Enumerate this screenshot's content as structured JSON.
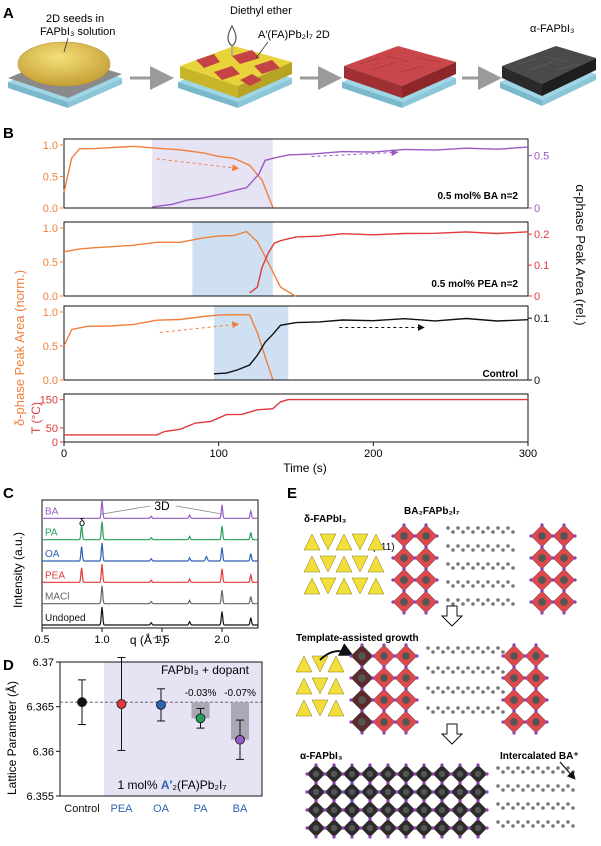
{
  "colors": {
    "orange": "#f07f3c",
    "purple": "#9b59c6",
    "red": "#e03a3a",
    "black": "#111111",
    "green": "#27a05b",
    "blue": "#2e62b5",
    "gray": "#666666",
    "shade_blue": "#cfe0f2",
    "shade_lav": "#e6e4f4",
    "crystal_yellow": "#f2df3a",
    "crystal_red": "#e0494b",
    "crystal_black": "#2b2b2b",
    "atom_purple": "#8a3fb4"
  },
  "panelA": {
    "letter": "A",
    "seeds_label": [
      "2D seeds in",
      "FAPbI₃ solution"
    ],
    "ether_label": "Diethyl ether",
    "twoD_label": "A′(FA)Pb₂I₇ 2D",
    "alpha_label": "α-FAPbI₃"
  },
  "panelB": {
    "letter": "B",
    "left_axis_label": "δ-phase Peak Area (norm.)",
    "right_axis_label": "α-phase Peak Area (rel.)",
    "temp_label": "T (°C)",
    "xlabel": "Time (s)",
    "sub1_label": "0.5 mol% BA n=2",
    "sub2_label": "0.5 mol% PEA n=2",
    "sub3_label": "Control"
  },
  "chart_data": [
    {
      "id": "B1",
      "type": "line",
      "xlim": [
        0,
        300
      ],
      "left_ylim": [
        0,
        1.0
      ],
      "right_ylim": [
        0,
        0.6
      ],
      "left_ticks": [
        "0.0",
        "0.5",
        "1.0"
      ],
      "right_ticks": [
        "0",
        "0.5"
      ],
      "shaded_x": [
        57,
        135
      ],
      "series": [
        {
          "axis": "left",
          "color": "orange",
          "x": [
            0,
            5,
            10,
            20,
            30,
            45,
            60,
            75,
            90,
            100,
            110,
            120,
            128,
            135
          ],
          "y": [
            0.25,
            0.8,
            0.93,
            0.95,
            0.96,
            0.97,
            0.96,
            0.92,
            0.87,
            0.83,
            0.78,
            0.68,
            0.45,
            0.0
          ]
        },
        {
          "axis": "right",
          "color": "purple",
          "x": [
            57,
            70,
            80,
            90,
            100,
            110,
            118,
            126,
            130,
            135,
            145,
            160,
            180,
            200,
            220,
            240,
            260,
            280,
            300
          ],
          "y": [
            0.01,
            0.04,
            0.07,
            0.1,
            0.13,
            0.16,
            0.2,
            0.32,
            0.45,
            0.48,
            0.5,
            0.52,
            0.53,
            0.54,
            0.55,
            0.56,
            0.56,
            0.57,
            0.57
          ]
        }
      ]
    },
    {
      "id": "B2",
      "type": "line",
      "xlim": [
        0,
        300
      ],
      "left_ylim": [
        0,
        1.0
      ],
      "right_ylim": [
        0,
        0.22
      ],
      "left_ticks": [
        "0.0",
        "0.5",
        "1.0"
      ],
      "right_ticks": [
        "0",
        "0.1",
        "0.2"
      ],
      "shaded_x": [
        83,
        135
      ],
      "series": [
        {
          "axis": "left",
          "color": "orange",
          "x": [
            0,
            10,
            20,
            30,
            45,
            60,
            75,
            90,
            100,
            110,
            118,
            125,
            132,
            140,
            150
          ],
          "y": [
            0.65,
            0.7,
            0.7,
            0.73,
            0.75,
            0.78,
            0.8,
            0.85,
            0.88,
            0.9,
            0.94,
            0.8,
            0.5,
            0.12,
            0.0
          ]
        },
        {
          "axis": "right",
          "color": "red",
          "x": [
            120,
            125,
            128,
            132,
            136,
            140,
            150,
            165,
            180,
            200,
            220,
            240,
            260,
            280,
            300
          ],
          "y": [
            0.01,
            0.03,
            0.09,
            0.14,
            0.17,
            0.18,
            0.19,
            0.195,
            0.2,
            0.2,
            0.2,
            0.205,
            0.205,
            0.205,
            0.205
          ]
        }
      ]
    },
    {
      "id": "B3",
      "type": "line",
      "xlim": [
        0,
        300
      ],
      "left_ylim": [
        0,
        1.0
      ],
      "right_ylim": [
        0,
        0.11
      ],
      "left_ticks": [
        "0.0",
        "0.5",
        "1.0"
      ],
      "right_ticks": [
        "0",
        "0.1"
      ],
      "shaded_x": [
        97,
        145
      ],
      "series": [
        {
          "axis": "left",
          "color": "orange",
          "x": [
            0,
            5,
            15,
            30,
            45,
            60,
            75,
            90,
            100,
            110,
            120,
            125,
            130,
            135
          ],
          "y": [
            0.5,
            0.75,
            0.78,
            0.8,
            0.82,
            0.87,
            0.9,
            0.93,
            0.95,
            0.97,
            0.95,
            0.7,
            0.35,
            0.0
          ]
        },
        {
          "axis": "right",
          "color": "black",
          "x": [
            97,
            105,
            112,
            120,
            125,
            130,
            135,
            140,
            150,
            165,
            180,
            200,
            220,
            240,
            260,
            280,
            300
          ],
          "y": [
            0.01,
            0.012,
            0.015,
            0.025,
            0.04,
            0.06,
            0.075,
            0.088,
            0.092,
            0.095,
            0.096,
            0.097,
            0.098,
            0.097,
            0.098,
            0.097,
            0.096
          ]
        }
      ]
    },
    {
      "id": "B4",
      "type": "line",
      "xlim": [
        0,
        300
      ],
      "ylim": [
        0,
        170
      ],
      "yticks": [
        "0",
        "50",
        "150"
      ],
      "xticks": [
        "0",
        "100",
        "200",
        "300"
      ],
      "series": [
        {
          "color": "red",
          "x": [
            0,
            60,
            65,
            75,
            85,
            95,
            105,
            115,
            125,
            135,
            140,
            145,
            160,
            200,
            250,
            300
          ],
          "y": [
            25,
            25,
            35,
            52,
            65,
            80,
            95,
            105,
            112,
            125,
            140,
            150,
            150,
            150,
            150,
            150
          ]
        }
      ]
    },
    {
      "id": "C",
      "type": "line",
      "title": "",
      "xlabel": "q (Å⁻¹)",
      "ylabel": "Intensity (a.u.)",
      "xlim": [
        0.5,
        2.3
      ],
      "xticks": [
        "0.5",
        "1.0",
        "1.5",
        "2.0"
      ],
      "annotation_3d": "3D",
      "annotation_delta": "δ",
      "series": [
        {
          "name": "BA",
          "color": "purple"
        },
        {
          "name": "PA",
          "color": "green"
        },
        {
          "name": "OA",
          "color": "blue"
        },
        {
          "name": "PEA",
          "color": "red"
        },
        {
          "name": "MACl",
          "color": "gray"
        },
        {
          "name": "Undoped",
          "color": "black"
        }
      ],
      "peaks_q": [
        1.0,
        1.41,
        1.73,
        2.0,
        2.24
      ],
      "peaks_h": [
        1.0,
        0.12,
        0.18,
        0.75,
        0.4
      ],
      "delta_q": 0.83
    },
    {
      "id": "D",
      "type": "scatter",
      "ylabel": "Lattice Parameter (Å)",
      "ylim": [
        6.355,
        6.37
      ],
      "yticks": [
        "6.355",
        "6.36",
        "6.365",
        "6.37"
      ],
      "reference_y": 6.3655,
      "inset_title": "FAPbI₃ + dopant",
      "inset_caption_pre": "1 mol% ",
      "inset_caption_em": "A′",
      "inset_caption_post": "₂(FA)Pb₂I₇",
      "categories": [
        "Control",
        "PEA",
        "OA",
        "PA",
        "BA"
      ],
      "values": [
        6.3655,
        6.3653,
        6.3652,
        6.3637,
        6.3613
      ],
      "errors": [
        0.0025,
        0.0052,
        0.0018,
        0.0011,
        0.0022
      ],
      "point_colors": [
        "black",
        "red",
        "blue",
        "green",
        "purple"
      ],
      "bar_labels": [
        "",
        "",
        "",
        "-0.03%",
        "-0.07%"
      ]
    }
  ],
  "panelE": {
    "letter": "E",
    "delta_label": "δ-FAPbI₃",
    "ba_label": "BA₂FAPb₂I₇",
    "plane_label": "(011)",
    "template_label": "Template-assisted growth",
    "alpha_label": "α-FAPbI₃",
    "intercalated_label": "Intercalated BA⁺"
  },
  "letters": {
    "C": "C",
    "D": "D"
  }
}
